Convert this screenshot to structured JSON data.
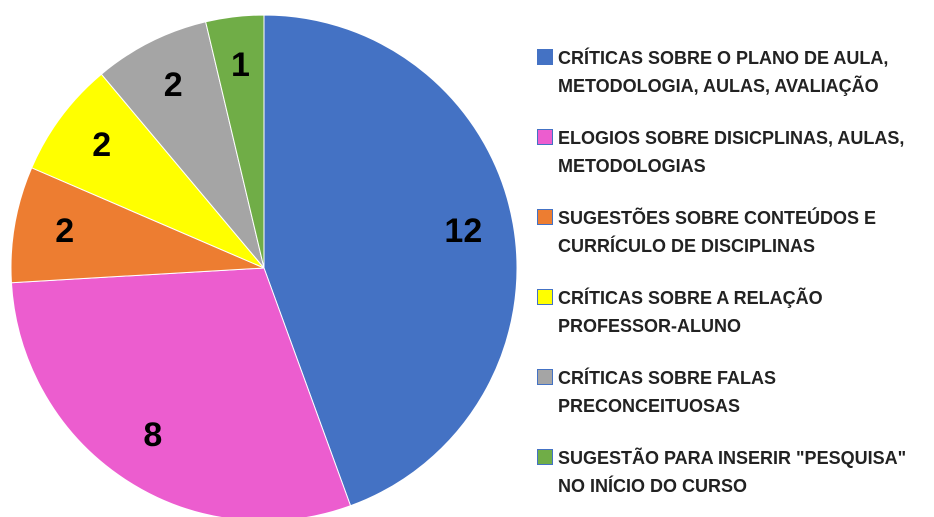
{
  "chart_data": {
    "type": "pie",
    "categories": [
      "CRÍTICAS SOBRE O PLANO DE AULA, METODOLOGIA, AULAS, AVALIAÇÃO",
      "ELOGIOS SOBRE DISICPLINAS, AULAS, METODOLOGIAS",
      "SUGESTÕES SOBRE CONTEÚDOS E CURRÍCULO DE DISCIPLINAS",
      "CRÍTICAS SOBRE A RELAÇÃO PROFESSOR-ALUNO",
      "CRÍTICAS SOBRE FALAS PRECONCEITUOSAS",
      "SUGESTÃO PARA INSERIR \"PESQUISA\" NO INÍCIO DO CURSO"
    ],
    "values": [
      12,
      8,
      2,
      2,
      2,
      1
    ],
    "colors": [
      "#4472c4",
      "#ec5dcf",
      "#ed7d31",
      "#ffff00",
      "#a5a5a5",
      "#70ad47"
    ],
    "legend": "right"
  }
}
